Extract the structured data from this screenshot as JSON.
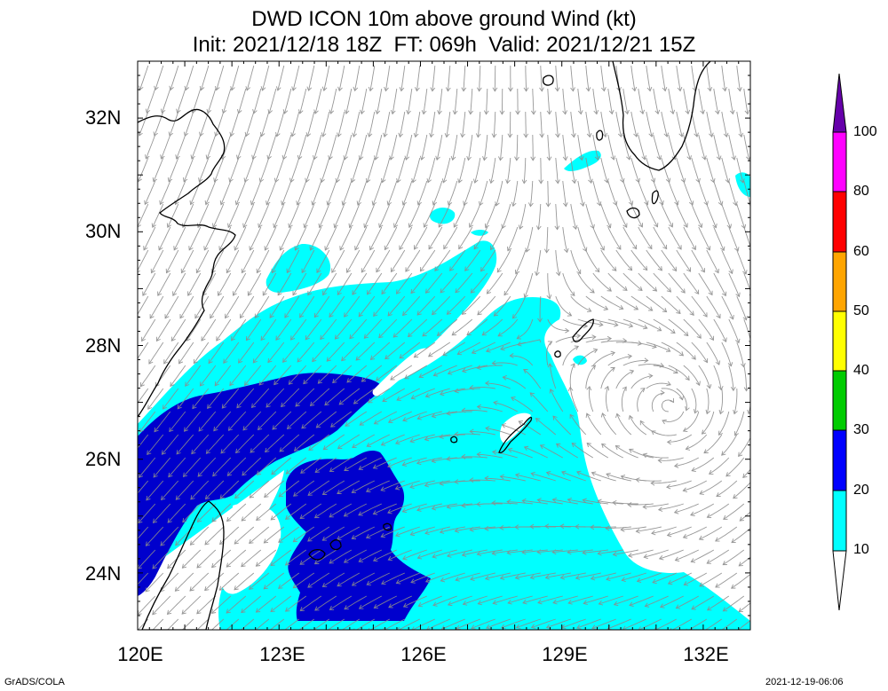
{
  "title": {
    "line1": "DWD ICON 10m above ground Wind (kt)",
    "line2": "Init: 2021/12/18 18Z  FT: 069h  Valid: 2021/12/21 15Z"
  },
  "map": {
    "lon_range": [
      120,
      133
    ],
    "lat_range": [
      23,
      33
    ],
    "lat_ticks": [
      {
        "value": 32,
        "label": "32N"
      },
      {
        "value": 30,
        "label": "30N"
      },
      {
        "value": 28,
        "label": "28N"
      },
      {
        "value": 26,
        "label": "26N"
      },
      {
        "value": 24,
        "label": "24N"
      }
    ],
    "lon_ticks": [
      {
        "value": 120,
        "label": "120E"
      },
      {
        "value": 123,
        "label": "123E"
      },
      {
        "value": 126,
        "label": "126E"
      },
      {
        "value": 129,
        "label": "129E"
      },
      {
        "value": 132,
        "label": "132E"
      }
    ],
    "streamline_color": "#8c8c8c",
    "coastline_color": "#000000"
  },
  "colorbar": {
    "levels": [
      {
        "label": "10",
        "color": "#00ffff"
      },
      {
        "label": "20",
        "color": "#0000ff"
      },
      {
        "label": "30",
        "color": "#00cc00"
      },
      {
        "label": "40",
        "color": "#ffff00"
      },
      {
        "label": "50",
        "color": "#ffa500"
      },
      {
        "label": "60",
        "color": "#ff0000"
      },
      {
        "label": "80",
        "color": "#ff00ff"
      },
      {
        "label": "100",
        "color": "#6600aa"
      }
    ],
    "shading": {
      "10-20": "#00ffff",
      "20-30": "#0000cd"
    }
  },
  "footer": {
    "left": "GrADS/COLA",
    "right": "2021-12-19-06:06"
  }
}
